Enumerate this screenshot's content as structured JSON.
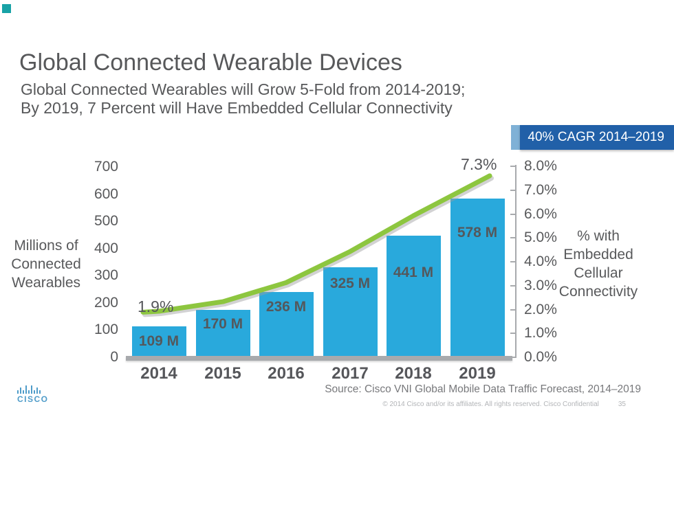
{
  "slide": {
    "title": "Global Connected Wearable Devices",
    "subtitle_line1": "Global Connected Wearables will Grow 5-Fold from 2014-2019;",
    "subtitle_line2": "By 2019, 7 Percent will Have Embedded Cellular Connectivity",
    "badge": "40% CAGR 2014–2019",
    "source": "Source: Cisco VNI Global Mobile Data Traffic Forecast, 2014–2019",
    "copyright": "© 2014  Cisco and/or its affiliates. All rights reserved.   Cisco Confidential",
    "slide_number": "35",
    "logo_text": "CISCO"
  },
  "chart_data": {
    "type": "bar",
    "subtype": "combo-bar-line-dual-axis",
    "categories": [
      "2014",
      "2015",
      "2016",
      "2017",
      "2018",
      "2019"
    ],
    "series": [
      {
        "name": "Millions of Connected Wearables",
        "type": "bar",
        "axis": "left",
        "values": [
          109,
          170,
          236,
          325,
          441,
          578
        ],
        "data_labels": [
          "109 M",
          "170 M",
          "236 M",
          "325 M",
          "441 M",
          "578 M"
        ],
        "color": "#29a9dc"
      },
      {
        "name": "% with Embedded Cellular Connectivity",
        "type": "line",
        "axis": "right",
        "values": [
          1.9,
          2.3,
          3.1,
          4.4,
          5.9,
          7.3
        ],
        "labeled_points": {
          "2014": "1.9%",
          "2019": "7.3%"
        },
        "color": "#8dc63f"
      }
    ],
    "left_axis": {
      "label_lines": [
        "Millions of",
        "Connected",
        "Wearables"
      ],
      "ticks": [
        700,
        600,
        500,
        400,
        300,
        200,
        100,
        0
      ],
      "range": [
        0,
        700
      ]
    },
    "right_axis": {
      "label_lines": [
        "% with",
        "Embedded",
        "Cellular",
        "Connectivity"
      ],
      "ticks": [
        "8.0%",
        "7.0%",
        "6.0%",
        "5.0%",
        "4.0%",
        "3.0%",
        "2.0%",
        "1.0%",
        "0.0%"
      ],
      "range": [
        0,
        8
      ]
    },
    "grid": false,
    "legend": false,
    "annotations": [
      "1.9%",
      "7.3%",
      "40% CAGR 2014–2019"
    ]
  }
}
